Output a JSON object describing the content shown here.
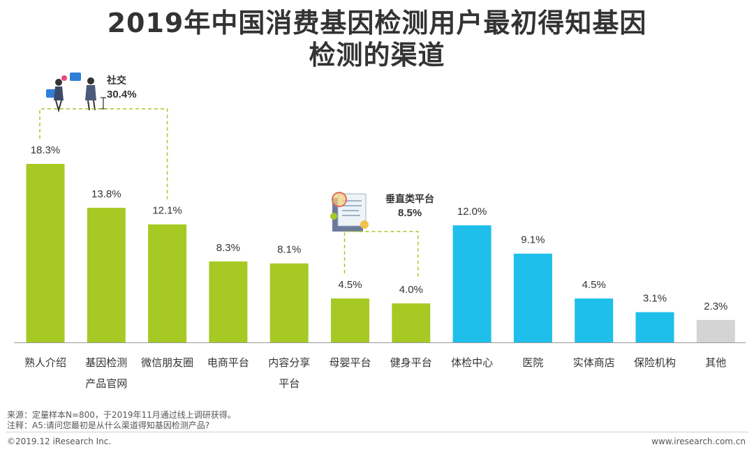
{
  "title": {
    "line1": "2019年中国消费基因检测用户最初得知基因",
    "line2": "检测的渠道"
  },
  "chart_data": {
    "type": "bar",
    "title": "2019年中国消费基因检测用户最初得知基因检测的渠道",
    "unit": "%",
    "ylim": [
      0,
      20
    ],
    "categories": [
      [
        "熟人介绍"
      ],
      [
        "基因检测",
        "产品官网"
      ],
      [
        "微信朋友圈"
      ],
      [
        "电商平台"
      ],
      [
        "内容分享",
        "平台"
      ],
      [
        "母婴平台"
      ],
      [
        "健身平台"
      ],
      [
        "体检中心"
      ],
      [
        "医院"
      ],
      [
        "实体商店"
      ],
      [
        "保险机构"
      ],
      [
        "其他"
      ]
    ],
    "values": [
      18.3,
      13.8,
      12.1,
      8.3,
      8.1,
      4.5,
      4.0,
      12.0,
      9.1,
      4.5,
      3.1,
      2.3
    ],
    "labels": [
      "18.3%",
      "13.8%",
      "12.1%",
      "8.3%",
      "8.1%",
      "4.5%",
      "4.0%",
      "12.0%",
      "9.1%",
      "4.5%",
      "3.1%",
      "2.3%"
    ],
    "groups": [
      "social",
      "social",
      "social",
      "social",
      "social",
      "vertical",
      "vertical",
      "medical",
      "medical",
      "medical",
      "medical",
      "other"
    ],
    "colors": {
      "social": "#a6c924",
      "vertical": "#a6c924",
      "medical": "#1ebfea",
      "other": "#d4d4d4"
    },
    "annotations": [
      {
        "label": "社交",
        "value": "30.4%",
        "bars": [
          0,
          2
        ]
      },
      {
        "label": "垂直类平台",
        "value": "8.5%",
        "bars": [
          5,
          6
        ]
      }
    ]
  },
  "footer": {
    "source": "来源：定量样本N=800，于2019年11月通过线上调研获得。",
    "note": "注释：A5:请问您最初是从什么渠道得知基因检测产品?",
    "copyright": "©2019.12 iResearch Inc.",
    "website": "www.iresearch.com.cn"
  }
}
